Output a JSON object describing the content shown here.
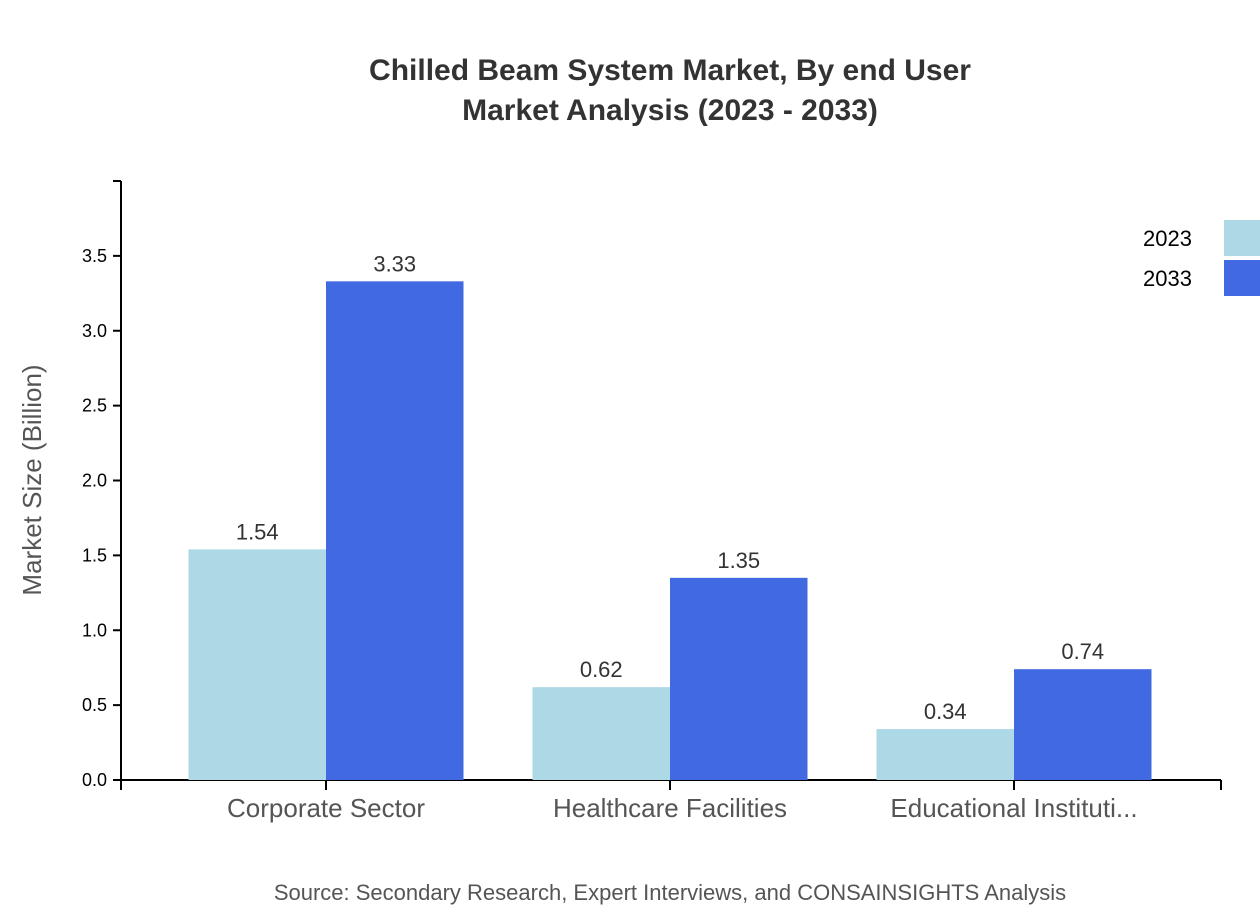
{
  "chart_data": {
    "type": "bar",
    "title": "Chilled Beam System Market, By end User",
    "subtitle": "Market Analysis (2023 - 2033)",
    "xlabel": "",
    "ylabel": "Market Size (Billion)",
    "categories": [
      "Corporate Sector",
      "Healthcare Facilities",
      "Educational Instituti..."
    ],
    "series": [
      {
        "name": "2023",
        "color": "#ADD8E6",
        "values": [
          1.54,
          0.62,
          0.34
        ]
      },
      {
        "name": "2033",
        "color": "#4169E1",
        "values": [
          3.33,
          1.35,
          0.74
        ]
      }
    ],
    "ylim": [
      0,
      4.0
    ],
    "yticks": [
      "0.0",
      "0.5",
      "1.0",
      "1.5",
      "2.0",
      "2.5",
      "3.0",
      "3.5"
    ],
    "grid": false,
    "legend": "top-right",
    "source": "Source: Secondary Research, Expert Interviews, and CONSAINSIGHTS Analysis"
  }
}
